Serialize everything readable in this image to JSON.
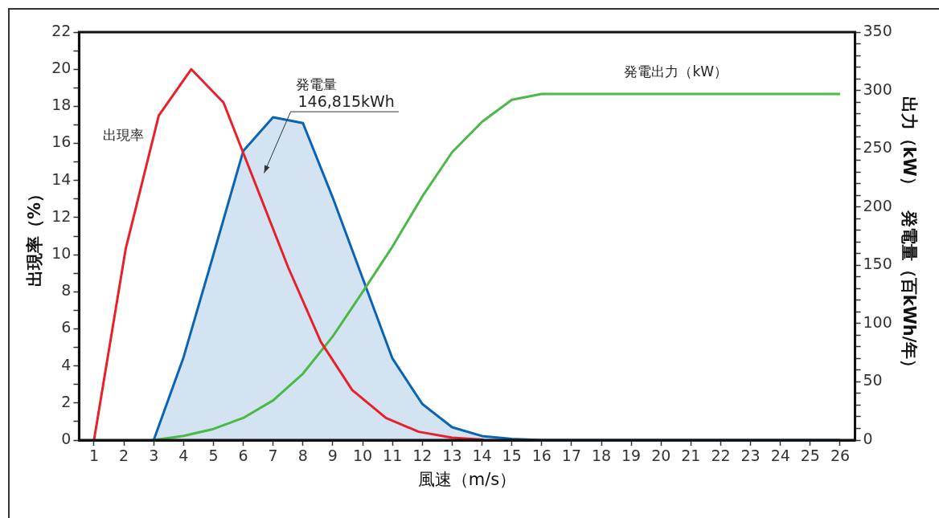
{
  "chart_data": {
    "type": "line",
    "xlabel": "風速（m/s）",
    "ylabel": "出現率（%）",
    "y2label": "出力（kW）　発電量（百kWh/年）",
    "x": [
      3,
      4,
      5,
      6,
      7,
      8,
      9,
      10,
      11,
      12,
      13,
      14,
      15,
      16,
      17,
      18,
      19,
      20,
      21,
      22,
      23,
      24,
      25,
      26
    ],
    "xlim": [
      0.5,
      26.5
    ],
    "xticks": [
      1,
      2,
      3,
      4,
      5,
      6,
      7,
      8,
      9,
      10,
      11,
      12,
      13,
      14,
      15,
      16,
      17,
      18,
      19,
      20,
      21,
      22,
      23,
      24,
      25,
      26
    ],
    "ylim": [
      0,
      22
    ],
    "yticks": [
      0,
      {
        "value": 1,
        "label": null
      },
      2,
      {
        "value": 3,
        "label": null
      },
      4,
      {
        "value": 5,
        "label": null
      },
      6,
      {
        "value": 7,
        "label": null
      },
      8,
      {
        "value": 9,
        "label": null
      },
      10,
      {
        "value": 11,
        "label": null
      },
      12,
      {
        "value": 13,
        "label": null
      },
      14,
      {
        "value": 15,
        "label": null
      },
      16,
      {
        "value": 17,
        "label": null
      },
      18,
      {
        "value": 19,
        "label": null
      },
      20,
      {
        "value": 21,
        "label": null
      },
      22
    ],
    "y2lim": [
      0,
      350
    ],
    "y2ticks": [
      0,
      {
        "value": 10,
        "label": null
      },
      {
        "value": 20,
        "label": null
      },
      {
        "value": 30,
        "label": null
      },
      {
        "value": 40,
        "label": null
      },
      50,
      {
        "value": 60,
        "label": null
      },
      {
        "value": 70,
        "label": null
      },
      {
        "value": 80,
        "label": null
      },
      {
        "value": 90,
        "label": null
      },
      100,
      {
        "value": 110,
        "label": null
      },
      {
        "value": 120,
        "label": null
      },
      {
        "value": 130,
        "label": null
      },
      {
        "value": 140,
        "label": null
      },
      150,
      {
        "value": 160,
        "label": null
      },
      {
        "value": 170,
        "label": null
      },
      {
        "value": 180,
        "label": null
      },
      {
        "value": 190,
        "label": null
      },
      200,
      {
        "value": 210,
        "label": null
      },
      {
        "value": 220,
        "label": null
      },
      {
        "value": 230,
        "label": null
      },
      {
        "value": 240,
        "label": null
      },
      250,
      {
        "value": 260,
        "label": null
      },
      {
        "value": 270,
        "label": null
      },
      {
        "value": 280,
        "label": null
      },
      {
        "value": 290,
        "label": null
      },
      300,
      {
        "value": 310,
        "label": null
      },
      {
        "value": 320,
        "label": null
      },
      {
        "value": 330,
        "label": null
      },
      {
        "value": 340,
        "label": null
      },
      350
    ],
    "series": [
      {
        "name": "発電量",
        "type": "area",
        "axis": "y2",
        "color": "#0a64b4",
        "values": [
          0,
          71,
          159,
          248,
          277,
          272,
          208,
          139,
          70,
          31,
          11,
          3.5,
          1,
          0,
          0,
          0,
          0,
          0,
          0,
          0,
          0,
          0,
          0,
          0
        ]
      },
      {
        "name": "出現率",
        "color": "#e8202a",
        "x": [
          1,
          2.06,
          3.17,
          4.26,
          5.34,
          7.51,
          8.6,
          9.65,
          10.78,
          11.88,
          13.0,
          14.05
        ],
        "values": [
          0,
          10.3,
          17.5,
          20.0,
          18.2,
          9.3,
          5.3,
          2.7,
          1.2,
          0.45,
          0.13,
          0.02
        ]
      },
      {
        "name": "発電出力（kW）",
        "axis": "y2",
        "color": "#4cb848",
        "values": [
          0,
          3.6,
          9.5,
          19,
          34,
          57,
          89,
          127,
          166,
          209,
          247,
          273,
          292,
          297,
          297,
          297,
          297,
          297,
          297,
          297,
          297,
          297,
          297,
          297
        ]
      }
    ],
    "annotations": [
      "146,815kWh"
    ],
    "legend": false,
    "grid": false
  }
}
